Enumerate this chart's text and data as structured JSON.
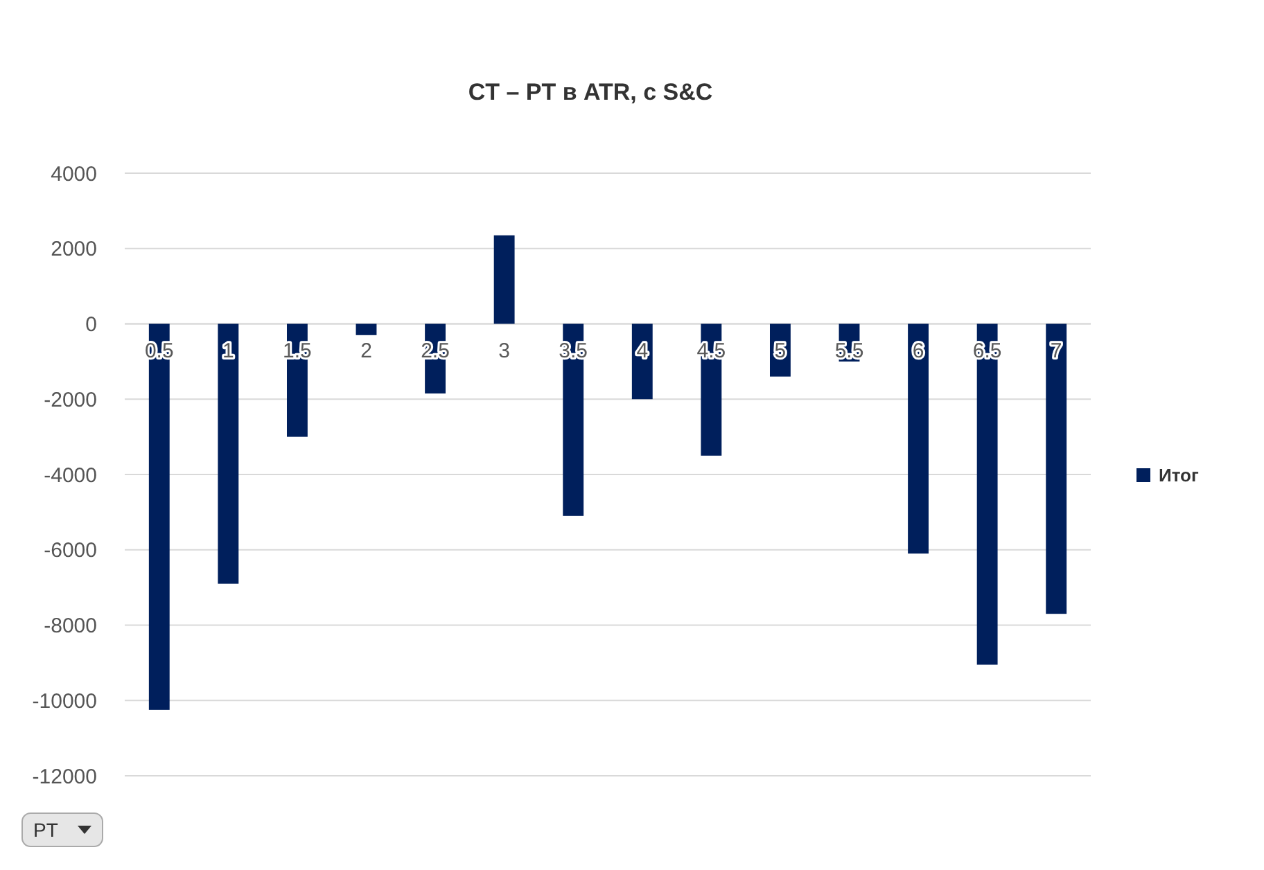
{
  "chart_data": {
    "type": "bar",
    "title": "CT – PT в ATR, с S&C",
    "categories": [
      "0.5",
      "1",
      "1.5",
      "2",
      "2.5",
      "3",
      "3.5",
      "4",
      "4.5",
      "5",
      "5.5",
      "6",
      "6.5",
      "7"
    ],
    "series": [
      {
        "name": "Итог",
        "color": "#001f5c",
        "values": [
          -10250,
          -6900,
          -3000,
          -300,
          -1850,
          2350,
          -5100,
          -2000,
          -3500,
          -1400,
          -1000,
          -6100,
          -9050,
          -7700
        ]
      }
    ],
    "ylim": [
      -12000,
      4000
    ],
    "yticks": [
      -12000,
      -10000,
      -8000,
      -6000,
      -4000,
      -2000,
      0,
      2000,
      4000
    ],
    "grid": "y",
    "legend": "right",
    "annotations": [
      "PT"
    ]
  }
}
